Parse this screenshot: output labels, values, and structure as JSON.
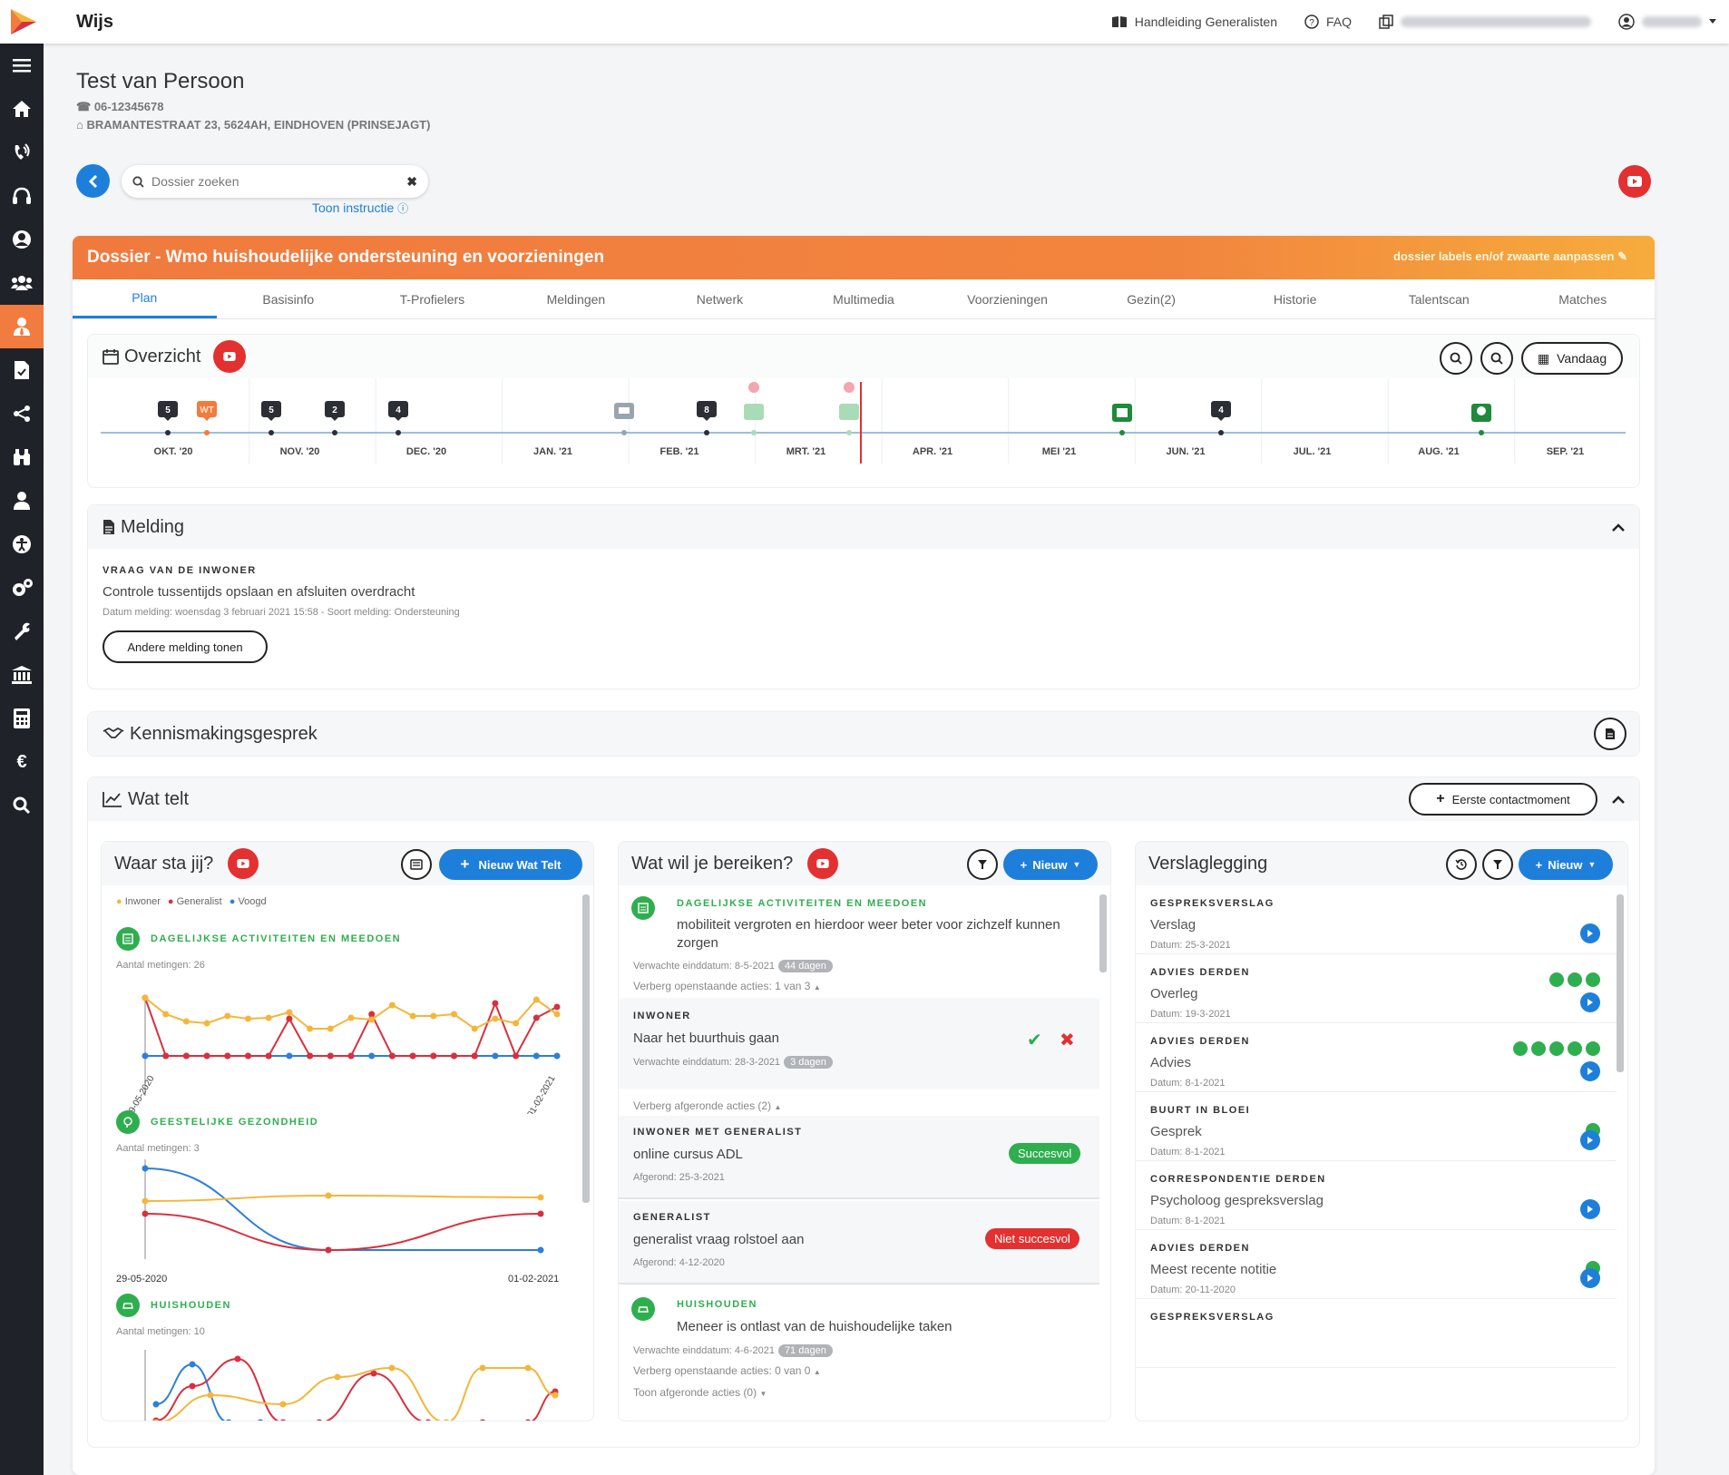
{
  "app": {
    "name": "Wijs"
  },
  "topnav": {
    "manual": "Handleiding Generalisten",
    "faq": "FAQ"
  },
  "person": {
    "name": "Test van Persoon",
    "phone": "06-12345678",
    "address": "BRAMANTESTRAAT 23, 5624AH, EINDHOVEN (PRINSEJAGT)"
  },
  "search": {
    "placeholder": "Dossier zoeken",
    "instruction": "Toon instructie"
  },
  "dossier": {
    "title": "Dossier - Wmo huishoudelijke ondersteuning en voorzieningen",
    "labels_link": "dossier labels en/of zwaarte aanpassen"
  },
  "tabs": [
    "Plan",
    "Basisinfo",
    "T-Profielers",
    "Meldingen",
    "Netwerk",
    "Multimedia",
    "Voorzieningen",
    "Gezin(2)",
    "Historie",
    "Talentscan",
    "Matches"
  ],
  "overzicht": {
    "title": "Overzicht",
    "today_button": "Vandaag",
    "months": [
      "OKT. '20",
      "NOV. '20",
      "DEC. '20",
      "JAN. '21",
      "FEB. '21",
      "MRT. '21",
      "APR. '21",
      "MEI '21",
      "JUN. '21",
      "JUL. '21",
      "AUG. '21",
      "SEP. '21"
    ],
    "markers": [
      {
        "label": "5",
        "kind": "dark"
      },
      {
        "label": "WT",
        "kind": "orange"
      },
      {
        "label": "5",
        "kind": "dark"
      },
      {
        "label": "2",
        "kind": "dark"
      },
      {
        "label": "4",
        "kind": "dark"
      },
      {
        "label": "8",
        "kind": "dark"
      },
      {
        "label": "4",
        "kind": "dark"
      }
    ]
  },
  "melding": {
    "title": "Melding",
    "question_label": "VRAAG VAN DE INWONER",
    "text": "Controle tussentijds opslaan en afsluiten overdracht",
    "meta": "Datum melding: woensdag 3 februari 2021 15:58 - Soort melding: Ondersteuning",
    "button": "Andere melding tonen"
  },
  "kennismaking": {
    "title": "Kennismakingsgesprek"
  },
  "wattelt": {
    "title": "Wat telt",
    "first_contact_button": "Eerste contactmoment",
    "waarsta": {
      "title": "Waar sta jij?",
      "new_button": "Nieuw Wat Telt",
      "legend": [
        "Inwoner",
        "Generalist",
        "Voogd"
      ],
      "colors": {
        "inwoner": "#f4b63a",
        "generalist": "#d9303e",
        "voogd": "#2e7fd8"
      },
      "groups": [
        {
          "title": "DAGELIJKSE ACTIVITEITEN EN MEEDOEN",
          "count": "Aantal metingen: 26",
          "date_start": "29-05-2020",
          "date_end": "01-02-2021"
        },
        {
          "title": "GEESTELIJKE GEZONDHEID",
          "count": "Aantal metingen: 3",
          "date_start": "29-05-2020",
          "date_end": "01-02-2021"
        },
        {
          "title": "HUISHOUDEN",
          "count": "Aantal metingen: 10"
        }
      ]
    },
    "bereiken": {
      "title": "Wat wil je bereiken?",
      "new_button": "Nieuw",
      "goal1": {
        "title": "DAGELIJKSE ACTIVITEITEN EN MEEDOEN",
        "text": "mobiliteit vergroten en hierdoor weer beter voor zichzelf kunnen zorgen",
        "due": "Verwachte einddatum: 8-5-2021",
        "badge": "44 dagen",
        "hide_open": "Verberg openstaande acties: 1 van 3"
      },
      "action1": {
        "who": "INWONER",
        "text": "Naar het buurthuis gaan",
        "due": "Verwachte einddatum: 28-3-2021",
        "badge": "3 dagen"
      },
      "hide_done": "Verberg afgeronde acties (2)",
      "action2": {
        "who": "INWONER MET GENERALIST",
        "text": "online cursus ADL",
        "done": "Afgerond: 25-3-2021",
        "status": "Succesvol"
      },
      "action3": {
        "who": "GENERALIST",
        "text": "generalist vraag rolstoel aan",
        "done": "Afgerond: 4-12-2020",
        "status": "Niet succesvol"
      },
      "goal2": {
        "title": "HUISHOUDEN",
        "text": "Meneer is ontlast van de huishoudelijke taken",
        "due": "Verwachte einddatum: 4-6-2021",
        "badge": "71 dagen",
        "hide_open": "Verberg openstaande acties: 0 van 0",
        "show_done": "Toon afgeronde acties (0)"
      }
    },
    "verslag": {
      "title": "Verslaglegging",
      "new_button": "Nieuw",
      "items": [
        {
          "type": "GESPREKSVERSLAG",
          "name": "Verslag",
          "date": "Datum: 25-3-2021",
          "icons": 0
        },
        {
          "type": "ADVIES DERDEN",
          "name": "Overleg",
          "date": "Datum: 19-3-2021",
          "icons": 3
        },
        {
          "type": "ADVIES DERDEN",
          "name": "Advies",
          "date": "Datum: 8-1-2021",
          "icons": 5
        },
        {
          "type": "BUURT IN BLOEI",
          "name": "Gesprek",
          "date": "Datum: 8-1-2021",
          "icons": 1
        },
        {
          "type": "CORRESPONDENTIE DERDEN",
          "name": "Psycholoog gespreksverslag",
          "date": "Datum: 8-1-2021",
          "icons": 0
        },
        {
          "type": "ADVIES DERDEN",
          "name": "Meest recente notitie",
          "date": "Datum: 20-11-2020",
          "icons": 1
        },
        {
          "type": "GESPREKSVERSLAG",
          "name": "",
          "date": "",
          "icons": 0
        }
      ]
    }
  }
}
